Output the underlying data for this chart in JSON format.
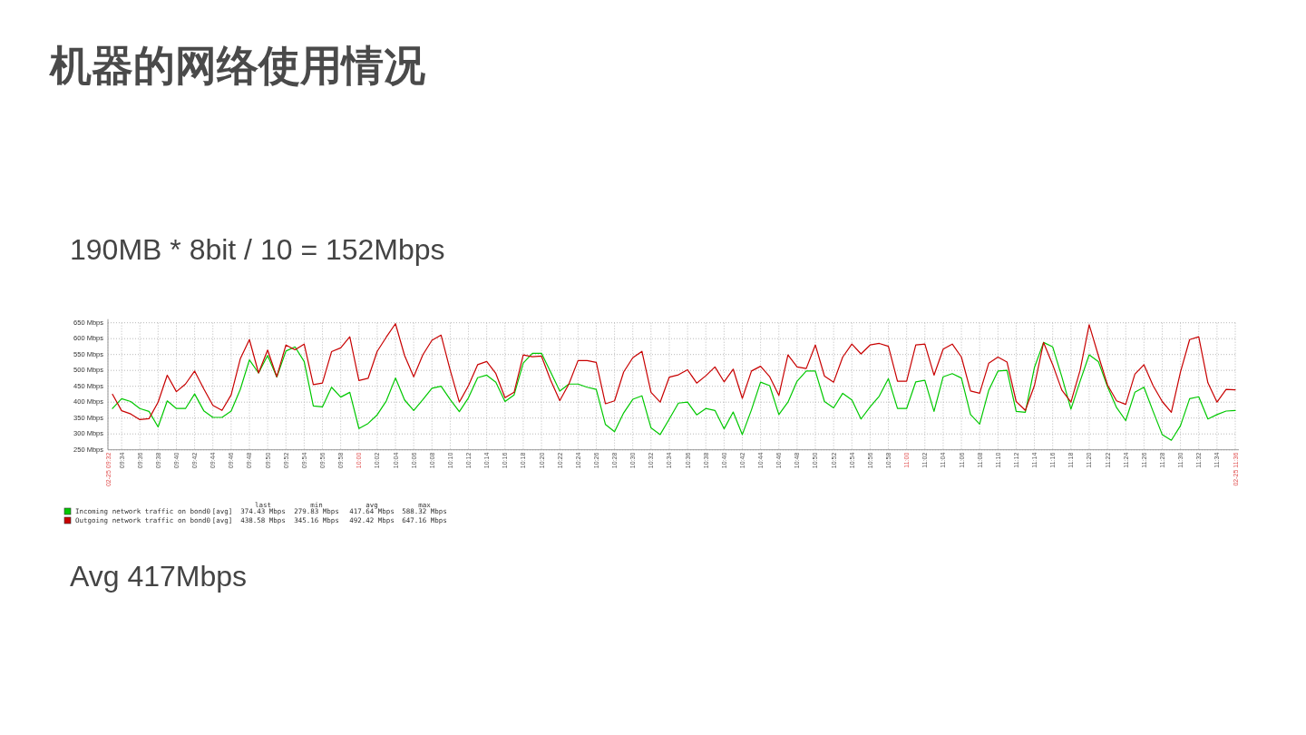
{
  "chart_data": {
    "type": "line",
    "title": "机器的网络使用情况",
    "subtitle": "190MB * 8bit / 10 = 152Mbps",
    "annotations": [
      "Avg 417Mbps",
      "last",
      "min",
      "avg",
      "max",
      "[avg]",
      "374.43 Mbps",
      "279.83 Mbps",
      "417.64 Mbps",
      "588.32 Mbps",
      "[avg]",
      "438.58 Mbps",
      "345.16 Mbps",
      "492.42 Mbps",
      "647.16 Mbps"
    ],
    "x": [
      9.55,
      9.5667,
      9.5833,
      9.6,
      9.6167,
      9.6333,
      9.65,
      9.6667,
      9.6833,
      9.7,
      9.7167,
      9.7333,
      9.75,
      9.7667,
      9.7833,
      9.8,
      9.8167,
      9.8333,
      9.85,
      9.8667,
      9.8833,
      9.9,
      9.9167,
      9.9333,
      9.95,
      9.9667,
      9.9833,
      10,
      10.0167,
      10.0333,
      10.05,
      10.0667,
      10.0833,
      10.1,
      10.1167,
      10.1333,
      10.15,
      10.1667,
      10.1833,
      10.2,
      10.2167,
      10.2333,
      10.25,
      10.2667,
      10.2833,
      10.3,
      10.3167,
      10.3333,
      10.35,
      10.3667,
      10.3833,
      10.4,
      10.4167,
      10.4333,
      10.45,
      10.4667,
      10.4833,
      10.5,
      10.5167,
      10.5333,
      10.55,
      10.5667,
      10.5833,
      10.6,
      10.6167,
      10.6333,
      10.65,
      10.6667,
      10.6833,
      10.7,
      10.7167,
      10.7333,
      10.75,
      10.7667,
      10.7833,
      10.8,
      10.8167,
      10.8333,
      10.85,
      10.8667,
      10.8833,
      10.9,
      10.9167,
      10.9333,
      10.95,
      10.9667,
      10.9833,
      11,
      11.0167,
      11.0333,
      11.05,
      11.0667,
      11.0833,
      11.1,
      11.1167,
      11.1333,
      11.15,
      11.1667,
      11.1833,
      11.2,
      11.2167,
      11.2333,
      11.25,
      11.2667,
      11.2833,
      11.3,
      11.3167,
      11.3333,
      11.35,
      11.3667,
      11.3833,
      11.4,
      11.4167,
      11.4333,
      11.45,
      11.4667,
      11.4833,
      11.5,
      11.5167,
      11.5333,
      11.55,
      11.5667,
      11.5833,
      11.6
    ],
    "series": [
      {
        "name": "Incoming network traffic on bond0",
        "color": "#00c800",
        "values": [
          380,
          411,
          402,
          380,
          371,
          322,
          404,
          380,
          380,
          426,
          373,
          352,
          352,
          372,
          440,
          533,
          492,
          547,
          479,
          561,
          574,
          528,
          388,
          385,
          447,
          416,
          431,
          317,
          333,
          360,
          404,
          476,
          407,
          374,
          408,
          444,
          450,
          408,
          370,
          414,
          477,
          485,
          463,
          402,
          423,
          523,
          554,
          554,
          495,
          435,
          457,
          457,
          447,
          440,
          330,
          307,
          366,
          409,
          420,
          319,
          298,
          347,
          397,
          400,
          360,
          380,
          374,
          316,
          369,
          298,
          376,
          463,
          452,
          361,
          400,
          466,
          498,
          498,
          402,
          382,
          428,
          407,
          347,
          385,
          419,
          474,
          380,
          380,
          464,
          469,
          371,
          480,
          490,
          476,
          361,
          331,
          438,
          498,
          500,
          371,
          368,
          509,
          588,
          574,
          480,
          378,
          466,
          549,
          528,
          449,
          383,
          342,
          431,
          447,
          371,
          298,
          280,
          326,
          411,
          417,
          347,
          361,
          372,
          374
        ]
      },
      {
        "name": "Outgoing network traffic on bond0",
        "color": "#c80000",
        "values": [
          425,
          373,
          363,
          345,
          348,
          400,
          485,
          433,
          457,
          498,
          442,
          390,
          374,
          423,
          536,
          597,
          492,
          564,
          480,
          580,
          565,
          583,
          455,
          460,
          559,
          571,
          606,
          468,
          475,
          560,
          605,
          647,
          547,
          480,
          549,
          595,
          611,
          500,
          400,
          452,
          518,
          528,
          490,
          414,
          431,
          549,
          543,
          545,
          469,
          405,
          457,
          531,
          531,
          525,
          395,
          404,
          495,
          540,
          560,
          431,
          400,
          479,
          486,
          502,
          460,
          483,
          511,
          464,
          504,
          412,
          498,
          513,
          480,
          421,
          549,
          511,
          506,
          580,
          482,
          463,
          542,
          583,
          552,
          580,
          585,
          576,
          466,
          466,
          580,
          583,
          485,
          567,
          583,
          542,
          435,
          428,
          523,
          542,
          526,
          402,
          374,
          452,
          588,
          518,
          438,
          400,
          500,
          644,
          547,
          454,
          404,
          393,
          488,
          518,
          452,
          402,
          368,
          495,
          597,
          606,
          461,
          400,
          440,
          439
        ]
      }
    ],
    "xlim": [
      9.5417,
      11.6
    ],
    "xticks": [
      {
        "value": 9.5417,
        "label": "02-25 09:32"
      },
      {
        "value": 9.5667,
        "label": "09:34"
      },
      {
        "value": 9.6,
        "label": "09:36"
      },
      {
        "value": 9.6333,
        "label": "09:38"
      },
      {
        "value": 9.6667,
        "label": "09:40"
      },
      {
        "value": 9.7,
        "label": "09:42"
      },
      {
        "value": 9.7333,
        "label": "09:44"
      },
      {
        "value": 9.7667,
        "label": "09:46"
      },
      {
        "value": 9.8,
        "label": "09:48"
      },
      {
        "value": 9.8333,
        "label": "09:50"
      },
      {
        "value": 9.8667,
        "label": "09:52"
      },
      {
        "value": 9.9,
        "label": "09:54"
      },
      {
        "value": 9.9333,
        "label": "09:56"
      },
      {
        "value": 9.9667,
        "label": "09:58"
      },
      {
        "value": 10,
        "label": "10:00"
      },
      {
        "value": 10.0333,
        "label": "10:02"
      },
      {
        "value": 10.0667,
        "label": "10:04"
      },
      {
        "value": 10.1,
        "label": "10:06"
      },
      {
        "value": 10.1333,
        "label": "10:08"
      },
      {
        "value": 10.1667,
        "label": "10:10"
      },
      {
        "value": 10.2,
        "label": "10:12"
      },
      {
        "value": 10.2333,
        "label": "10:14"
      },
      {
        "value": 10.2667,
        "label": "10:16"
      },
      {
        "value": 10.3,
        "label": "10:18"
      },
      {
        "value": 10.3333,
        "label": "10:20"
      },
      {
        "value": 10.3667,
        "label": "10:22"
      },
      {
        "value": 10.4,
        "label": "10:24"
      },
      {
        "value": 10.4333,
        "label": "10:26"
      },
      {
        "value": 10.4667,
        "label": "10:28"
      },
      {
        "value": 10.5,
        "label": "10:30"
      },
      {
        "value": 10.5333,
        "label": "10:32"
      },
      {
        "value": 10.5667,
        "label": "10:34"
      },
      {
        "value": 10.6,
        "label": "10:36"
      },
      {
        "value": 10.6333,
        "label": "10:38"
      },
      {
        "value": 10.6667,
        "label": "10:40"
      },
      {
        "value": 10.7,
        "label": "10:42"
      },
      {
        "value": 10.7333,
        "label": "10:44"
      },
      {
        "value": 10.7667,
        "label": "10:46"
      },
      {
        "value": 10.8,
        "label": "10:48"
      },
      {
        "value": 10.8333,
        "label": "10:50"
      },
      {
        "value": 10.8667,
        "label": "10:52"
      },
      {
        "value": 10.9,
        "label": "10:54"
      },
      {
        "value": 10.9333,
        "label": "10:56"
      },
      {
        "value": 10.9667,
        "label": "10:58"
      },
      {
        "value": 11,
        "label": "11:00"
      },
      {
        "value": 11.0333,
        "label": "11:02"
      },
      {
        "value": 11.0667,
        "label": "11:04"
      },
      {
        "value": 11.1,
        "label": "11:06"
      },
      {
        "value": 11.1333,
        "label": "11:08"
      },
      {
        "value": 11.1667,
        "label": "11:10"
      },
      {
        "value": 11.2,
        "label": "11:12"
      },
      {
        "value": 11.2333,
        "label": "11:14"
      },
      {
        "value": 11.2667,
        "label": "11:16"
      },
      {
        "value": 11.3,
        "label": "11:18"
      },
      {
        "value": 11.3333,
        "label": "11:20"
      },
      {
        "value": 11.3667,
        "label": "11:22"
      },
      {
        "value": 11.4,
        "label": "11:24"
      },
      {
        "value": 11.4333,
        "label": "11:26"
      },
      {
        "value": 11.4667,
        "label": "11:28"
      },
      {
        "value": 11.5,
        "label": "11:30"
      },
      {
        "value": 11.5333,
        "label": "11:32"
      },
      {
        "value": 11.5667,
        "label": "11:34"
      },
      {
        "value": 11.6,
        "label": "02-25 11:36"
      }
    ],
    "ylim": [
      250,
      650
    ],
    "yticks": [
      {
        "value": 250,
        "label": "250 Mbps"
      },
      {
        "value": 300,
        "label": "300 Mbps"
      },
      {
        "value": 350,
        "label": "350 Mbps"
      },
      {
        "value": 400,
        "label": "400 Mbps"
      },
      {
        "value": 450,
        "label": "450 Mbps"
      },
      {
        "value": 500,
        "label": "500 Mbps"
      },
      {
        "value": 550,
        "label": "550 Mbps"
      },
      {
        "value": 600,
        "label": "600 Mbps"
      },
      {
        "value": 650,
        "label": "650 Mbps"
      }
    ],
    "grid": true,
    "legend": "bottom left"
  }
}
